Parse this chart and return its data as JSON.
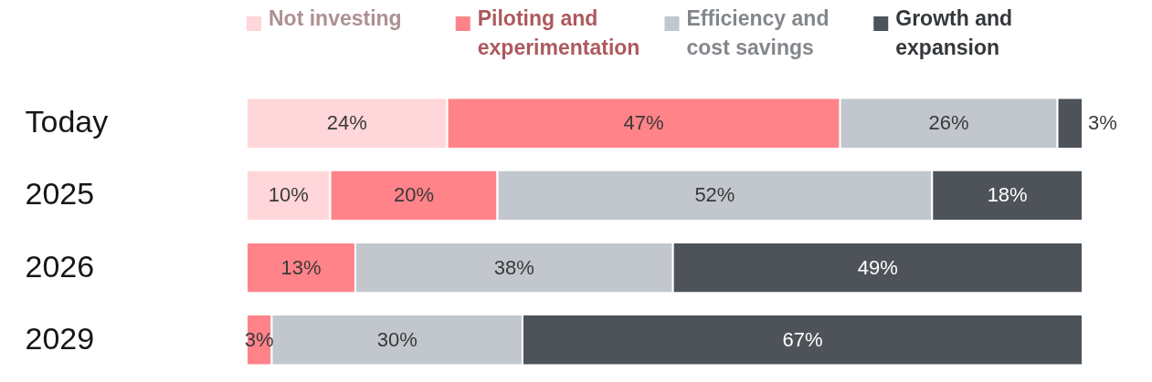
{
  "chart_data": {
    "type": "bar",
    "orientation": "horizontal",
    "stacked": true,
    "legend": "top",
    "categories": [
      "Today",
      "2025",
      "2026",
      "2029"
    ],
    "series": [
      {
        "name": "Not investing",
        "color": "#ffd6d9",
        "values": [
          24,
          10,
          null,
          null
        ],
        "value_labels": [
          "24%",
          "10%",
          null,
          null
        ]
      },
      {
        "name": "Piloting and experimentation",
        "color": "#ff8389",
        "values": [
          47,
          20,
          13,
          3
        ],
        "value_labels": [
          "47%",
          "20%",
          "13%",
          "3%"
        ]
      },
      {
        "name": "Efficiency and cost savings",
        "color": "#c1c7cd",
        "values": [
          26,
          52,
          38,
          30
        ],
        "value_labels": [
          "26%",
          "52%",
          "38%",
          "30%"
        ]
      },
      {
        "name": "Growth and expansion",
        "color": "#4d5358",
        "values": [
          3,
          18,
          49,
          67
        ],
        "value_labels": [
          "3%",
          "18%",
          "49%",
          "67%"
        ]
      }
    ]
  }
}
